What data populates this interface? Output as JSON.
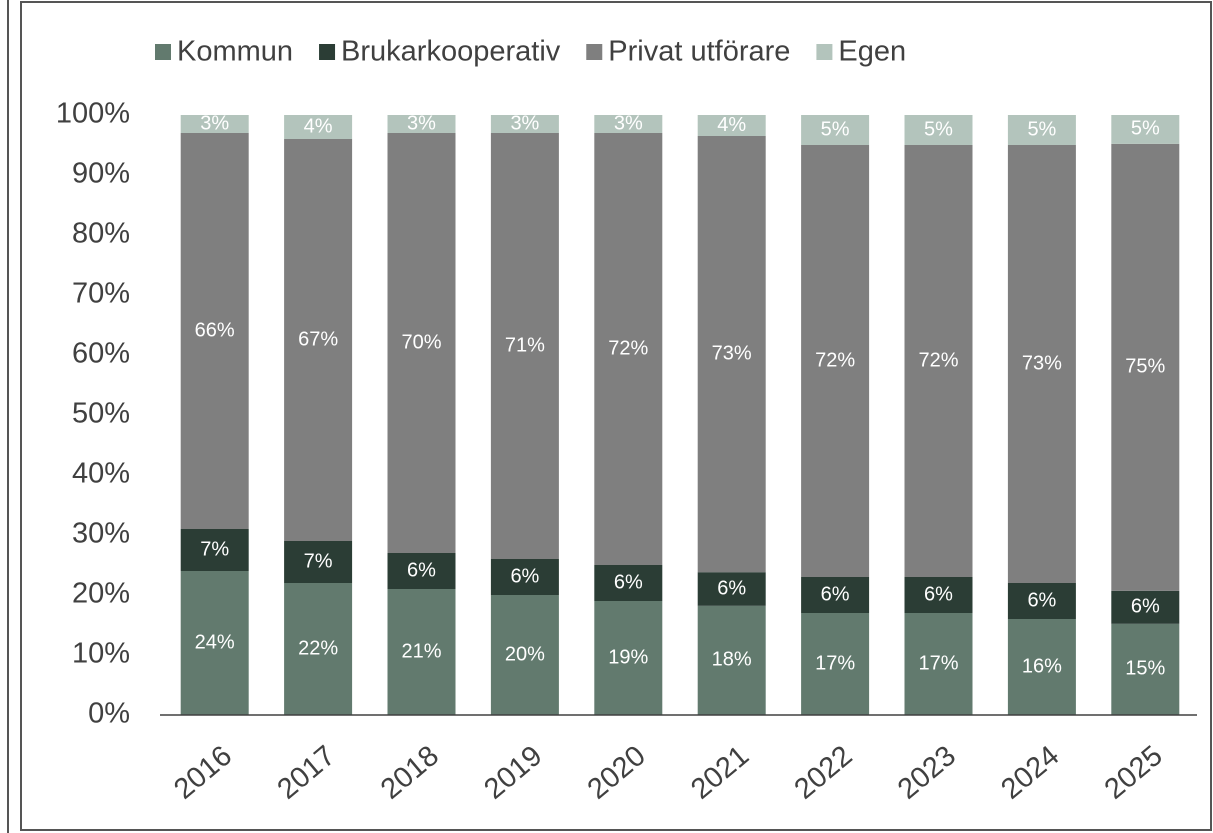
{
  "chart_data": {
    "type": "stacked_bar",
    "categories": [
      "2016",
      "2017",
      "2018",
      "2019",
      "2020",
      "2021",
      "2022",
      "2023",
      "2024",
      "2025"
    ],
    "series": [
      {
        "name": "Kommun",
        "color": "#627a6e",
        "values": [
          24,
          22,
          21,
          20,
          19,
          18.2,
          17,
          17,
          16,
          15.2
        ],
        "value_labels": [
          "24%",
          "22%",
          "21%",
          "20%",
          "19%",
          "18%",
          "17%",
          "17%",
          "16%",
          "15%"
        ]
      },
      {
        "name": "Brukarkooperativ",
        "color": "#2b3d35",
        "values": [
          7,
          7,
          6,
          6,
          6,
          5.6,
          6,
          6,
          6,
          5.5
        ],
        "value_labels": [
          "7%",
          "7%",
          "6%",
          "6%",
          "6%",
          "6%",
          "6%",
          "6%",
          "6%",
          "6%"
        ]
      },
      {
        "name": "Privat utförare",
        "color": "#7f7f7f",
        "values": [
          66,
          67,
          70,
          71,
          72,
          72.7,
          72,
          72,
          73,
          74.5
        ],
        "value_labels": [
          "66%",
          "67%",
          "70%",
          "71%",
          "72%",
          "73%",
          "72%",
          "72%",
          "73%",
          "75%"
        ]
      },
      {
        "name": "Egen",
        "color": "#b3c4bc",
        "values": [
          3,
          4,
          3,
          3,
          3,
          3.5,
          5,
          5,
          5,
          4.8
        ],
        "value_labels": [
          "3%",
          "4%",
          "3%",
          "3%",
          "3%",
          "4%",
          "5%",
          "5%",
          "5%",
          "5%"
        ]
      }
    ],
    "ylim": [
      0,
      100
    ],
    "yticks": [
      {
        "value": 0,
        "label": "0%"
      },
      {
        "value": 10,
        "label": "10%"
      },
      {
        "value": 20,
        "label": "20%"
      },
      {
        "value": 30,
        "label": "30%"
      },
      {
        "value": 40,
        "label": "40%"
      },
      {
        "value": 50,
        "label": "50%"
      },
      {
        "value": 60,
        "label": "60%"
      },
      {
        "value": 70,
        "label": "70%"
      },
      {
        "value": 80,
        "label": "80%"
      },
      {
        "value": 90,
        "label": "90%"
      },
      {
        "value": 100,
        "label": "100%"
      }
    ],
    "legend": "top"
  }
}
